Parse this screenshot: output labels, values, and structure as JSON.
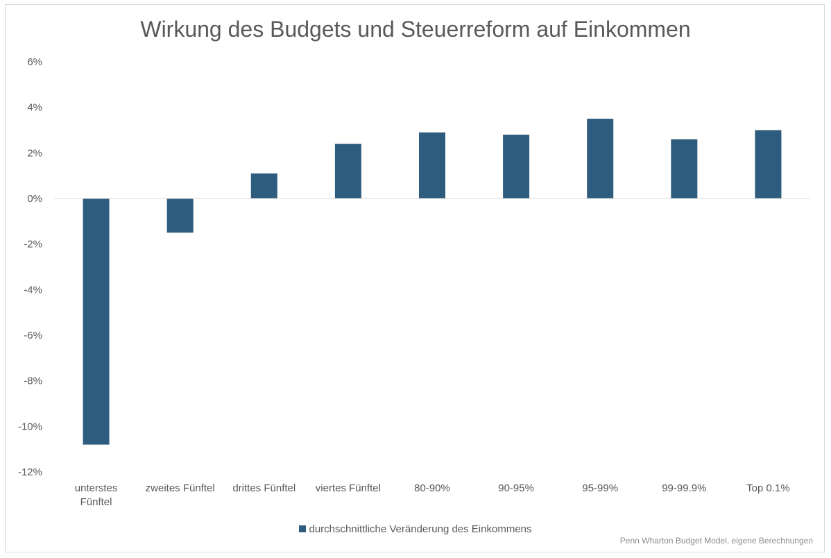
{
  "chart_data": {
    "type": "bar",
    "title": "Wirkung des Budgets und Steuerreform auf Einkommen",
    "categories": [
      "unterstes Fünftel",
      "zweites Fünftel",
      "drittes Fünftel",
      "viertes Fünftel",
      "80-90%",
      "90-95%",
      "95-99%",
      "99-99.9%",
      "Top 0.1%"
    ],
    "series": [
      {
        "name": "durchschnittliche Veränderung des Einkommens",
        "values": [
          -10.8,
          -1.5,
          1.1,
          2.4,
          2.9,
          2.8,
          3.5,
          2.6,
          3.0
        ],
        "color": "#2e5c7e"
      }
    ],
    "ylim": [
      -12,
      6
    ],
    "yticks": [
      6,
      4,
      2,
      0,
      -2,
      -4,
      -6,
      -8,
      -10,
      -12
    ],
    "ytick_labels": [
      "6%",
      "4%",
      "2%",
      "0%",
      "-2%",
      "-4%",
      "-6%",
      "-8%",
      "-10%",
      "-12%"
    ],
    "grid": false,
    "legend_position": "bottom",
    "source": "Penn Wharton Budget Model, eigene Berechnungen"
  }
}
